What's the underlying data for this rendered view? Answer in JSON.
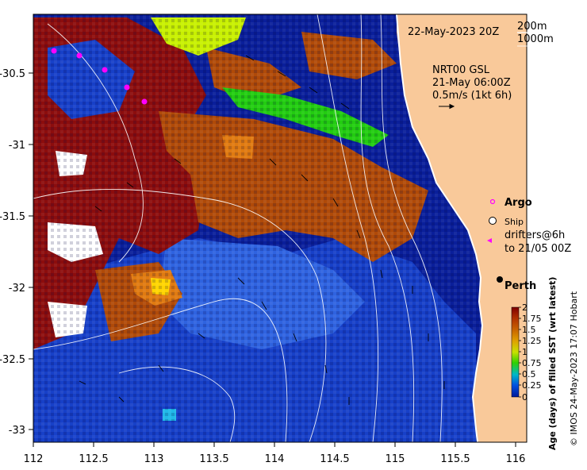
{
  "map": {
    "date_label": "22-May-2023 20Z",
    "depth_contours": [
      "200m",
      "1000m"
    ],
    "current_source": "NRT00 GSL",
    "current_time": "21-May 06:00Z",
    "current_scale": "0.5m/s (1kt 6h)",
    "x_ticks": [
      "112",
      "112.5",
      "113",
      "113.5",
      "114",
      "114.5",
      "115",
      "115.5",
      "116"
    ],
    "y_ticks": [
      "-30.5",
      "-31",
      "-31.5",
      "-32",
      "-32.5",
      "-33"
    ],
    "city": "Perth"
  },
  "legend": {
    "argo": "Argo",
    "ship": "Ship",
    "drifters_line1": "drifters@6h",
    "drifters_line2": "to 21/05 00Z",
    "argo_color": "#ff00ff",
    "drifter_color": "#ff00ff"
  },
  "colorbar": {
    "title": "Age (days) of filled SST (wrt latest)",
    "ticks": [
      "2",
      "1.75",
      "1.5",
      "1.25",
      "1",
      "0.75",
      "0.5",
      "0.25",
      "0"
    ],
    "colors": [
      "#7f0000",
      "#b03000",
      "#c86400",
      "#e0a000",
      "#c8e000",
      "#30d000",
      "#00b8c8",
      "#0050e0",
      "#00189a"
    ]
  },
  "credit": "© IMOS 24-May-2023 17:07 Hobart",
  "palette": {
    "land": "#f9c99a",
    "ocean_deep": "#0a1f9a",
    "ocean_mid": "#1740c8",
    "ocean_light": "#2f63e0",
    "brown": "#b04a08",
    "dark_red": "#8c0d0d",
    "orange": "#e07a10",
    "yellow": "#ffd400",
    "lime": "#c8f000",
    "green": "#22cc10",
    "white": "#ffffff",
    "cyan": "#20b8e8"
  }
}
